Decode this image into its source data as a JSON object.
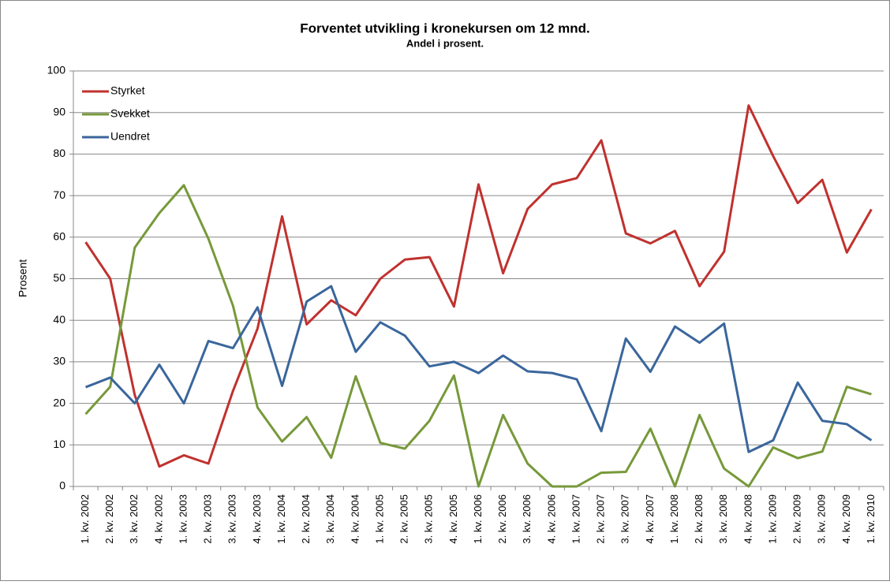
{
  "chart_data": {
    "type": "line",
    "title": "Forventet utvikling i kronekursen om 12 mnd.",
    "subtitle": "Andel i prosent.",
    "y_label": "Prosent",
    "categories": [
      "1. kv. 2002",
      "2. kv. 2002",
      "3. kv. 2002",
      "4. kv. 2002",
      "1. kv. 2003",
      "2. kv. 2003",
      "3. kv. 2003",
      "4. kv. 2003",
      "1. kv. 2004",
      "2. kv. 2004",
      "3. kv. 2004",
      "4. kv. 2004",
      "1. kv. 2005",
      "2. kv. 2005",
      "3. kv. 2005",
      "4. kv. 2005",
      "1. kv. 2006",
      "2. kv. 2006",
      "3. kv. 2006",
      "4. kv. 2006",
      "1. kv. 2007",
      "2. kv. 2007",
      "3. kv. 2007",
      "4. kv. 2007",
      "1. kv. 2008",
      "2. kv. 2008",
      "3. kv. 2008",
      "4. kv. 2008",
      "1. kv. 2009",
      "2. kv. 2009",
      "3. kv. 2009",
      "4. kv. 2009",
      "1. kv. 2010"
    ],
    "series": [
      {
        "name": "Styrket",
        "color": "#c0312e",
        "values": [
          58.8,
          50,
          22,
          4.8,
          7.5,
          5.5,
          23,
          38,
          65,
          39,
          44.8,
          41.2,
          50,
          54.6,
          55.2,
          43.3,
          72.7,
          51.3,
          66.8,
          72.7,
          74.2,
          83.3,
          60.9,
          58.5,
          61.5,
          48.2,
          56.5,
          91.7,
          79.5,
          68.2,
          73.8,
          56.3,
          66.7
        ]
      },
      {
        "name": "Svekket",
        "color": "#77993a",
        "values": [
          17.4,
          24,
          57.5,
          65.8,
          72.5,
          59.6,
          43.5,
          19,
          10.8,
          16.7,
          6.9,
          26.5,
          10.5,
          9.1,
          15.8,
          26.7,
          0,
          17.2,
          5.5,
          0,
          0,
          3.3,
          3.5,
          13.9,
          0,
          17.2,
          4.3,
          0,
          9.4,
          6.8,
          8.4,
          24,
          22.2
        ]
      },
      {
        "name": "Uendret",
        "color": "#3a669c",
        "values": [
          23.9,
          26.2,
          20,
          29.3,
          20,
          35,
          33.3,
          43.1,
          24.2,
          44.5,
          48.2,
          32.4,
          39.5,
          36.3,
          28.9,
          30,
          27.3,
          31.5,
          27.7,
          27.3,
          25.8,
          13.3,
          35.6,
          27.6,
          38.5,
          34.6,
          39.2,
          8.3,
          11.1,
          25,
          15.8,
          15,
          11.1
        ]
      }
    ],
    "ylim": [
      0,
      100
    ],
    "yticks": [
      0,
      10,
      20,
      30,
      40,
      50,
      60,
      70,
      80,
      90,
      100
    ],
    "grid": true,
    "legend": "top-left"
  }
}
